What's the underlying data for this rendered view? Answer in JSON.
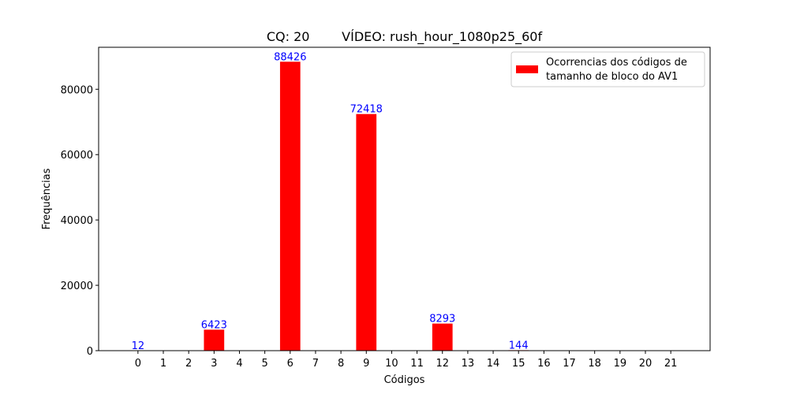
{
  "chart_data": {
    "type": "bar",
    "title": "CQ: 20        VÍDEO: rush_hour_1080p25_60f",
    "xlabel": "Códigos",
    "ylabel": "Frequências",
    "categories": [
      "0",
      "1",
      "2",
      "3",
      "4",
      "5",
      "6",
      "7",
      "8",
      "9",
      "10",
      "11",
      "12",
      "13",
      "14",
      "15",
      "16",
      "17",
      "18",
      "19",
      "20",
      "21"
    ],
    "values": [
      12,
      0,
      0,
      6423,
      0,
      0,
      88426,
      0,
      0,
      72418,
      0,
      0,
      8293,
      0,
      0,
      144,
      0,
      0,
      0,
      0,
      0,
      0
    ],
    "data_labels": [
      "12",
      "",
      "",
      "6423",
      "",
      "",
      "88426",
      "",
      "",
      "72418",
      "",
      "",
      "8293",
      "",
      "",
      "144",
      "",
      "",
      "",
      "",
      "",
      ""
    ],
    "y_ticks": [
      0,
      20000,
      40000,
      60000,
      80000
    ],
    "ylim": [
      0,
      92847
    ],
    "grid": false,
    "legend": {
      "position": "top-right",
      "entries": [
        {
          "label_line1": "Ocorrencias dos códigos de",
          "label_line2": "tamanho de bloco do AV1",
          "color": "#ff0000"
        }
      ]
    },
    "colors": {
      "bar": "#ff0000",
      "data_label": "#0000ff",
      "axis": "#000000"
    }
  }
}
